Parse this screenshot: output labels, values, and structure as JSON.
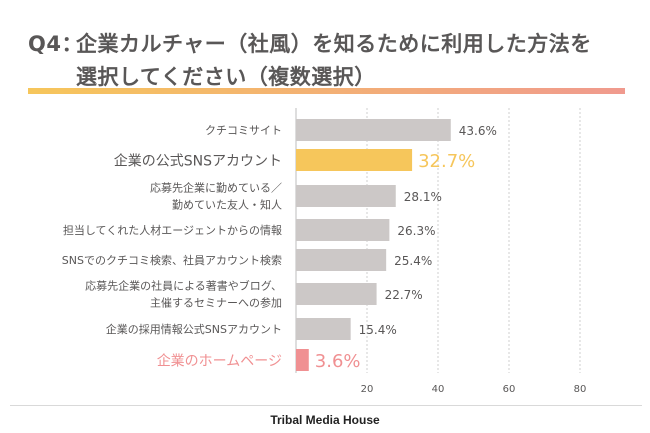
{
  "title": {
    "prefix": "Q4：",
    "line1": "企業カルチャー（社風）を知るために利用した方法を",
    "line2": "選択してください（複数選択）"
  },
  "footer": {
    "brand": "Tribal Media House"
  },
  "colors": {
    "default_bar": "#ccc8c7",
    "highlight_1": "#f6c65b",
    "highlight_2": "#f09092",
    "text": "#595757",
    "grid": "#cfcfcf"
  },
  "chart_data": {
    "type": "bar",
    "orientation": "horizontal",
    "title": "Q4：企業カルチャー（社風）を知るために利用した方法を選択してください（複数選択）",
    "xlabel": "",
    "ylabel": "",
    "xlim": [
      0,
      80
    ],
    "ticks": [
      20,
      40,
      60,
      80
    ],
    "grid": true,
    "categories": [
      [
        "クチコミサイト"
      ],
      [
        "企業の公式SNSアカウント"
      ],
      [
        "応募先企業に勤めている／",
        "勤めていた友人・知人"
      ],
      [
        "担当してくれた人材エージェントからの情報"
      ],
      [
        "SNSでのクチコミ検索、社員アカウント検索"
      ],
      [
        "応募先企業の社員による著書やブログ、",
        "主催するセミナーへの参加"
      ],
      [
        "企業の採用情報公式SNSアカウント"
      ],
      [
        "企業のホームページ"
      ]
    ],
    "values": [
      43.6,
      32.7,
      28.1,
      26.3,
      25.4,
      22.7,
      15.4,
      3.6
    ],
    "value_labels": [
      "43.6%",
      "32.7%",
      "28.1%",
      "26.3%",
      "25.4%",
      "22.7%",
      "15.4%",
      "3.6%"
    ],
    "highlight": [
      "none",
      "yellow",
      "none",
      "none",
      "none",
      "none",
      "none",
      "pink"
    ]
  }
}
